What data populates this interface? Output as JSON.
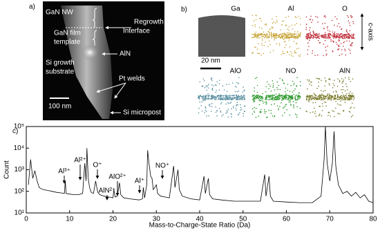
{
  "panel_a": {
    "label": "a)",
    "annotations": [
      "GaN NW",
      "Regrowth",
      "Interface",
      "GaN film",
      "template",
      "AlN",
      "Si growth",
      "substrate",
      "Pt welds",
      "100 nm",
      "Si micropost"
    ]
  },
  "panel_b": {
    "label": "b)",
    "maps": [
      {
        "name": "Ga",
        "color": "#555555"
      },
      {
        "name": "Al",
        "color": "#c8a63c"
      },
      {
        "name": "O",
        "color": "#c0303a"
      },
      {
        "name": "AlO",
        "color": "#5a8fa0"
      },
      {
        "name": "NO",
        "color": "#2f9a2f"
      },
      {
        "name": "AlN",
        "color": "#7a7a2a"
      }
    ],
    "scale_bar": "20 nm",
    "axis_label": "c-axis"
  },
  "chart_data": {
    "type": "line",
    "panel_label": "c)",
    "xlabel": "Mass-to-Charge-State Ratio (Da)",
    "ylabel": "Count",
    "log_y": true,
    "color": "#000000",
    "annotations": [
      "Al³⁺",
      "Al²⁺",
      "O⁺",
      "AlN²⁺",
      "AlO²⁺",
      "Al⁺",
      "NO⁺"
    ],
    "x": [
      0.5,
      1,
      1.5,
      2,
      2.5,
      3,
      3.5,
      4,
      5,
      6,
      7,
      8,
      8.8,
      9,
      9.2,
      10,
      11,
      12,
      13,
      13.5,
      13.8,
      14,
      14.3,
      14.6,
      15,
      15.5,
      16,
      16.5,
      17,
      18,
      19,
      20,
      20.2,
      20.5,
      21,
      21.5,
      21.8,
      22.5,
      24,
      26,
      26.8,
      27,
      27.3,
      27.8,
      28,
      28.3,
      28.7,
      29,
      29.3,
      30,
      30.3,
      31,
      32,
      33,
      34,
      34.3,
      35,
      35.3,
      36,
      38,
      40,
      41,
      41.3,
      42,
      42.3,
      43,
      45,
      48,
      50,
      52,
      54,
      55,
      55.3,
      56,
      56.3,
      57,
      60,
      63,
      66,
      68,
      68.7,
      69,
      69.4,
      70,
      70.6,
      71,
      71.4,
      72,
      73,
      74,
      75,
      76,
      77,
      78,
      79,
      80
    ],
    "values": [
      200,
      3000,
      400,
      900,
      300,
      150,
      130,
      120,
      110,
      100,
      90,
      85,
      80,
      300,
      80,
      75,
      70,
      70,
      80,
      2000,
      300,
      10000,
      400,
      150,
      90,
      80,
      300,
      90,
      70,
      60,
      55,
      50,
      120,
      55,
      60,
      250,
      70,
      50,
      45,
      40,
      45,
      150,
      50,
      200,
      8000,
      2000,
      500,
      400,
      120,
      200,
      80,
      60,
      55,
      50,
      1500,
      150,
      1000,
      120,
      60,
      45,
      40,
      500,
      80,
      400,
      70,
      45,
      40,
      35,
      35,
      35,
      35,
      600,
      60,
      500,
      60,
      35,
      32,
      30,
      30,
      60,
      3000,
      100000,
      2000,
      300,
      2000,
      60000,
      1500,
      200,
      80,
      100,
      60,
      90,
      50,
      70,
      35,
      30
    ],
    "xlim": [
      0,
      80
    ],
    "xticks": [
      0,
      10,
      20,
      30,
      40,
      50,
      60,
      70,
      80
    ],
    "ylim": [
      10,
      100000
    ],
    "yticks": [
      {
        "value": 10,
        "label": "10¹"
      },
      {
        "value": 100,
        "label": "10²"
      },
      {
        "value": 1000,
        "label": "10³"
      },
      {
        "value": 10000,
        "label": "10⁴"
      },
      {
        "value": 100000,
        "label": "10⁵"
      }
    ]
  }
}
